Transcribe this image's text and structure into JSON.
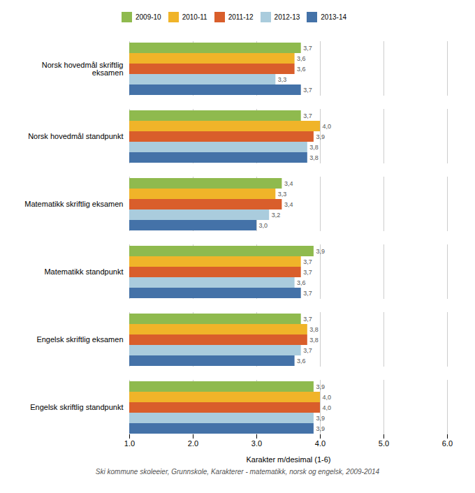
{
  "chart_data": {
    "type": "bar",
    "orientation": "horizontal",
    "categories": [
      "Norsk hovedmål skriftlig\neksamen",
      "Norsk hovedmål standpunkt",
      "Matematikk skriftlig eksamen",
      "Matematikk standpunkt",
      "Engelsk skriftlig eksamen",
      "Engelsk skriftlig standpunkt"
    ],
    "series": [
      {
        "name": "2009-10",
        "color": "#8fba4e",
        "values": [
          3.7,
          3.7,
          3.4,
          3.9,
          3.7,
          3.9
        ],
        "value_labels": [
          "3,7",
          "3,7",
          "3,4",
          "3,9",
          "3,7",
          "3,9"
        ]
      },
      {
        "name": "2010-11",
        "color": "#f0b429",
        "values": [
          3.6,
          4.0,
          3.3,
          3.7,
          3.8,
          4.0
        ],
        "value_labels": [
          "3,6",
          "4,0",
          "3,3",
          "3,7",
          "3,8",
          "4,0"
        ]
      },
      {
        "name": "2011-12",
        "color": "#d95e2b",
        "values": [
          3.6,
          3.9,
          3.4,
          3.7,
          3.8,
          4.0
        ],
        "value_labels": [
          "3,6",
          "3,9",
          "3,4",
          "3,7",
          "3,8",
          "4,0"
        ]
      },
      {
        "name": "2012-13",
        "color": "#aaccdd",
        "values": [
          3.3,
          3.8,
          3.2,
          3.6,
          3.7,
          3.9
        ],
        "value_labels": [
          "3,3",
          "3,8",
          "3,2",
          "3,6",
          "3,7",
          "3,9"
        ]
      },
      {
        "name": "2013-14",
        "color": "#4472a8",
        "values": [
          3.7,
          3.8,
          3.0,
          3.7,
          3.6,
          3.9
        ],
        "value_labels": [
          "3,7",
          "3,8",
          "3,0",
          "3,7",
          "3,6",
          "3,9"
        ]
      }
    ],
    "xlabel": "Karakter m/desimal (1-6)",
    "xlim": [
      1,
      6
    ],
    "xticks": [
      1,
      2,
      3,
      4,
      5,
      6
    ],
    "grid": true,
    "data_labels": true,
    "legend": "top",
    "footnote": "Ski kommune skoleeier, Grunnskole, Karakterer - matematikk, norsk og engelsk, 2009-2014"
  }
}
